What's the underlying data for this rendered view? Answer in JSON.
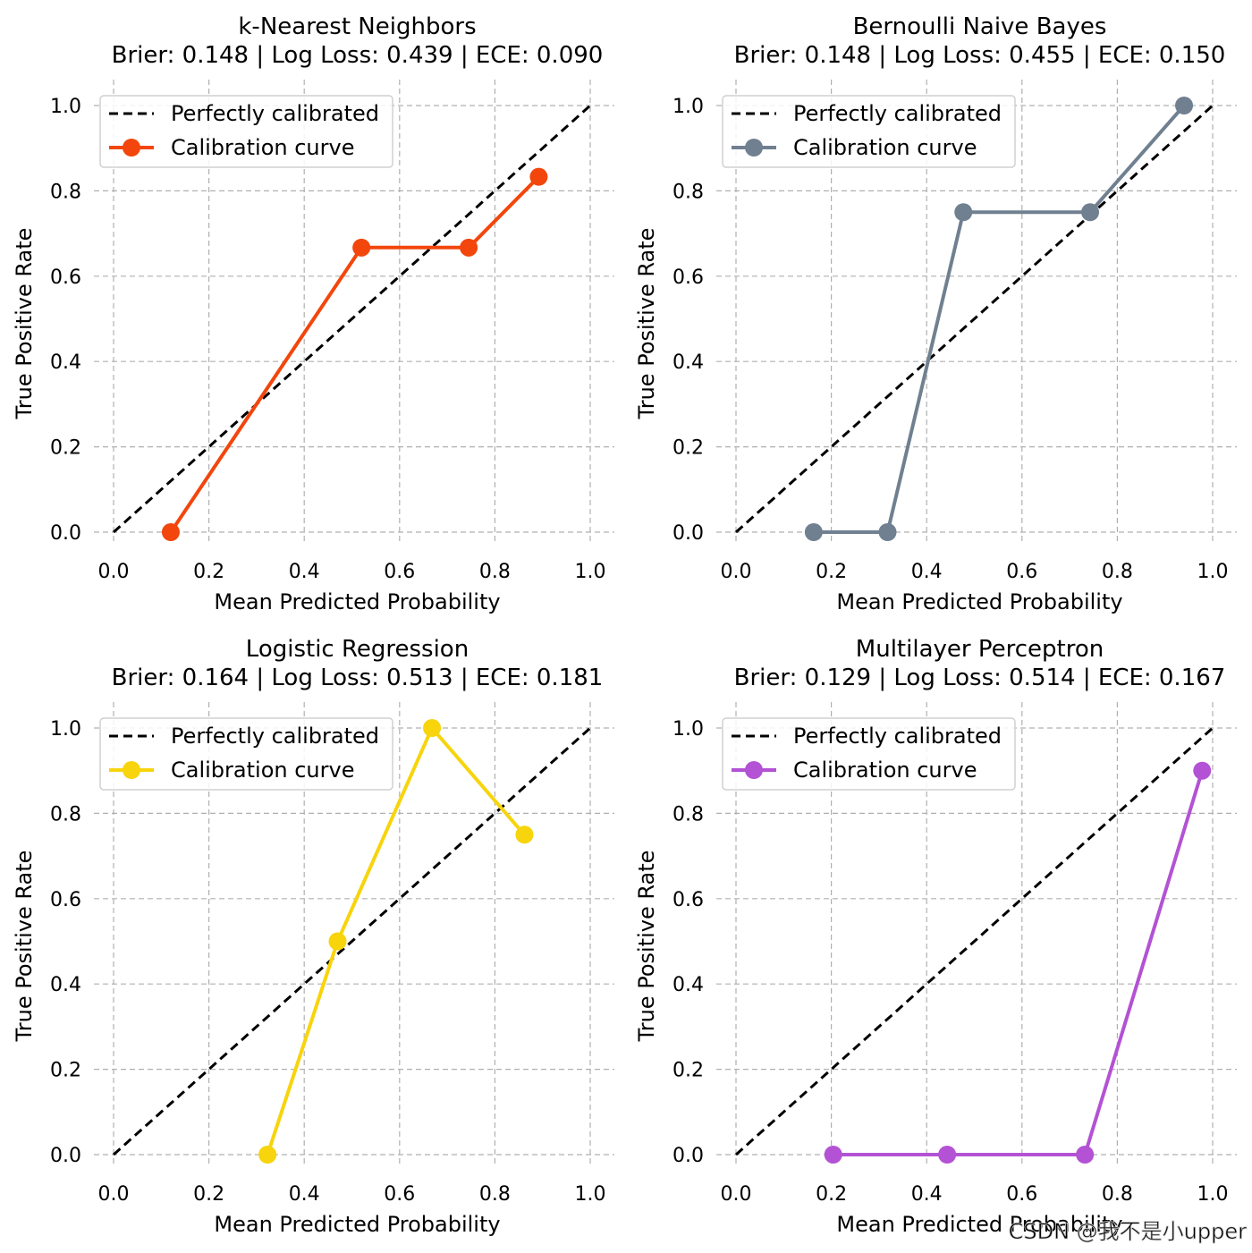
{
  "watermark": "CSDN @我不是小upper",
  "chart_data": [
    {
      "type": "line",
      "title": "k-Nearest Neighbors",
      "subtitle": "Brier: 0.148 | Log Loss: 0.439 | ECE: 0.090",
      "xlabel": "Mean Predicted Probability",
      "ylabel": "True Positive Rate",
      "xlim": [
        0,
        1
      ],
      "ylim": [
        0,
        1
      ],
      "xticks": [
        "0.0",
        "0.2",
        "0.4",
        "0.6",
        "0.8",
        "1.0"
      ],
      "yticks": [
        "0.0",
        "0.2",
        "0.4",
        "0.6",
        "0.8",
        "1.0"
      ],
      "grid": true,
      "legend_position": "top-left",
      "series": [
        {
          "name": "Perfectly calibrated",
          "color": "#000000",
          "style": "dashed",
          "x": [
            0,
            1
          ],
          "y": [
            0,
            1
          ]
        },
        {
          "name": "Calibration curve",
          "color": "#f2460c",
          "style": "solid-markers",
          "x": [
            0.12,
            0.52,
            0.745,
            0.892
          ],
          "y": [
            0.0,
            0.667,
            0.667,
            0.833
          ]
        }
      ]
    },
    {
      "type": "line",
      "title": "Bernoulli Naive Bayes",
      "subtitle": "Brier: 0.148 | Log Loss: 0.455 | ECE: 0.150",
      "xlabel": "Mean Predicted Probability",
      "ylabel": "True Positive Rate",
      "xlim": [
        0,
        1
      ],
      "ylim": [
        0,
        1
      ],
      "xticks": [
        "0.0",
        "0.2",
        "0.4",
        "0.6",
        "0.8",
        "1.0"
      ],
      "yticks": [
        "0.0",
        "0.2",
        "0.4",
        "0.6",
        "0.8",
        "1.0"
      ],
      "grid": true,
      "legend_position": "top-left",
      "series": [
        {
          "name": "Perfectly calibrated",
          "color": "#000000",
          "style": "dashed",
          "x": [
            0,
            1
          ],
          "y": [
            0,
            1
          ]
        },
        {
          "name": "Calibration curve",
          "color": "#708090",
          "style": "solid-markers",
          "x": [
            0.163,
            0.318,
            0.477,
            0.743,
            0.94
          ],
          "y": [
            0.0,
            0.0,
            0.75,
            0.75,
            1.0
          ]
        }
      ]
    },
    {
      "type": "line",
      "title": "Logistic Regression",
      "subtitle": "Brier: 0.164 | Log Loss: 0.513 | ECE: 0.181",
      "xlabel": "Mean Predicted Probability",
      "ylabel": "True Positive Rate",
      "xlim": [
        0,
        1
      ],
      "ylim": [
        0,
        1
      ],
      "xticks": [
        "0.0",
        "0.2",
        "0.4",
        "0.6",
        "0.8",
        "1.0"
      ],
      "yticks": [
        "0.0",
        "0.2",
        "0.4",
        "0.6",
        "0.8",
        "1.0"
      ],
      "grid": true,
      "legend_position": "top-left",
      "series": [
        {
          "name": "Perfectly calibrated",
          "color": "#000000",
          "style": "dashed",
          "x": [
            0,
            1
          ],
          "y": [
            0,
            1
          ]
        },
        {
          "name": "Calibration curve",
          "color": "#f7d40c",
          "style": "solid-markers",
          "x": [
            0.323,
            0.47,
            0.668,
            0.862
          ],
          "y": [
            0.0,
            0.5,
            1.0,
            0.75
          ]
        }
      ]
    },
    {
      "type": "line",
      "title": "Multilayer Perceptron",
      "subtitle": "Brier: 0.129 | Log Loss: 0.514 | ECE: 0.167",
      "xlabel": "Mean Predicted Probability",
      "ylabel": "True Positive Rate",
      "xlim": [
        0,
        1
      ],
      "ylim": [
        0,
        1
      ],
      "xticks": [
        "0.0",
        "0.2",
        "0.4",
        "0.6",
        "0.8",
        "1.0"
      ],
      "yticks": [
        "0.0",
        "0.2",
        "0.4",
        "0.6",
        "0.8",
        "1.0"
      ],
      "grid": true,
      "legend_position": "top-left",
      "series": [
        {
          "name": "Perfectly calibrated",
          "color": "#000000",
          "style": "dashed",
          "x": [
            0,
            1
          ],
          "y": [
            0,
            1
          ]
        },
        {
          "name": "Calibration curve",
          "color": "#b352d4",
          "style": "solid-markers",
          "x": [
            0.204,
            0.443,
            0.732,
            0.978
          ],
          "y": [
            0.0,
            0.0,
            0.0,
            0.9
          ]
        }
      ]
    }
  ]
}
